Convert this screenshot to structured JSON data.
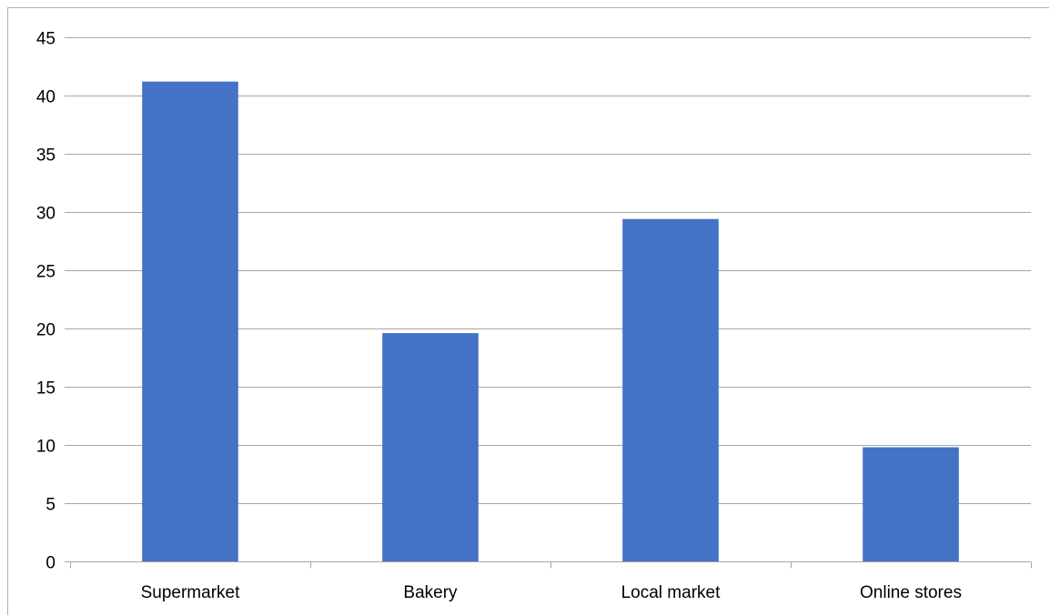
{
  "chart_data": {
    "type": "bar",
    "categories": [
      "Supermarket",
      "Bakery",
      "Local market",
      "Online stores"
    ],
    "series": [
      {
        "values": [
          41.2,
          19.6,
          29.4,
          9.8
        ]
      }
    ],
    "title": "",
    "xlabel": "",
    "ylabel": "",
    "ylim": [
      0,
      45
    ],
    "y_ticks": [
      "0",
      "5",
      "10",
      "15",
      "20",
      "25",
      "30",
      "35",
      "40",
      "45"
    ],
    "grid": true,
    "legend": "none",
    "bar_color": "#4472C4"
  }
}
